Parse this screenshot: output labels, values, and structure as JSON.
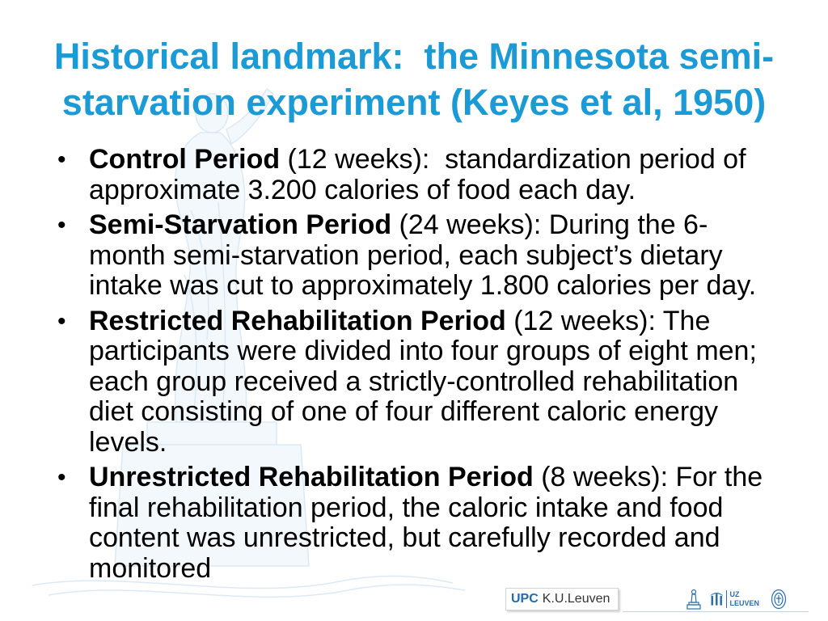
{
  "slide": {
    "title_lines": [
      "Historical landmark:  the Minnesota semi-",
      "starvation experiment (Keyes et al, 1950)"
    ],
    "bullet_glyph": "•",
    "bullets": [
      {
        "term": "Control Period",
        "text": " (12 weeks):  standardization period of approximate 3.200 calories of food each day."
      },
      {
        "term": "Semi-Starvation Period",
        "text": " (24 weeks): During the 6-month semi-starvation period, each subject’s dietary intake was cut to approximately 1.800 calories per day."
      },
      {
        "term": "Restricted Rehabilitation Period",
        "text": " (12 weeks): The participants were divided into four groups of eight men; each group received a strictly-controlled rehabilitation diet consisting of one of four different caloric energy levels."
      },
      {
        "term": "Unrestricted Rehabilitation Period",
        "text": " (8 weeks): For the final rehabilitation period, the caloric intake and food content was unrestricted, but carefully recorded and monitored"
      }
    ]
  },
  "footer": {
    "upc_label": "UPC",
    "university_label": "K.U.Leuven",
    "uz_logo_top": "UZ",
    "uz_logo_bottom": "LEUVEN"
  },
  "colors": {
    "title": "#1b9ad6",
    "body_text": "#000000",
    "upc": "#1f6cb4",
    "logo_blue": "#2d6fae",
    "watermark": "#dce9f4"
  },
  "icons": [
    "statue-watermark",
    "statue-logo-icon",
    "uz-figure-icon",
    "seal-icon"
  ]
}
